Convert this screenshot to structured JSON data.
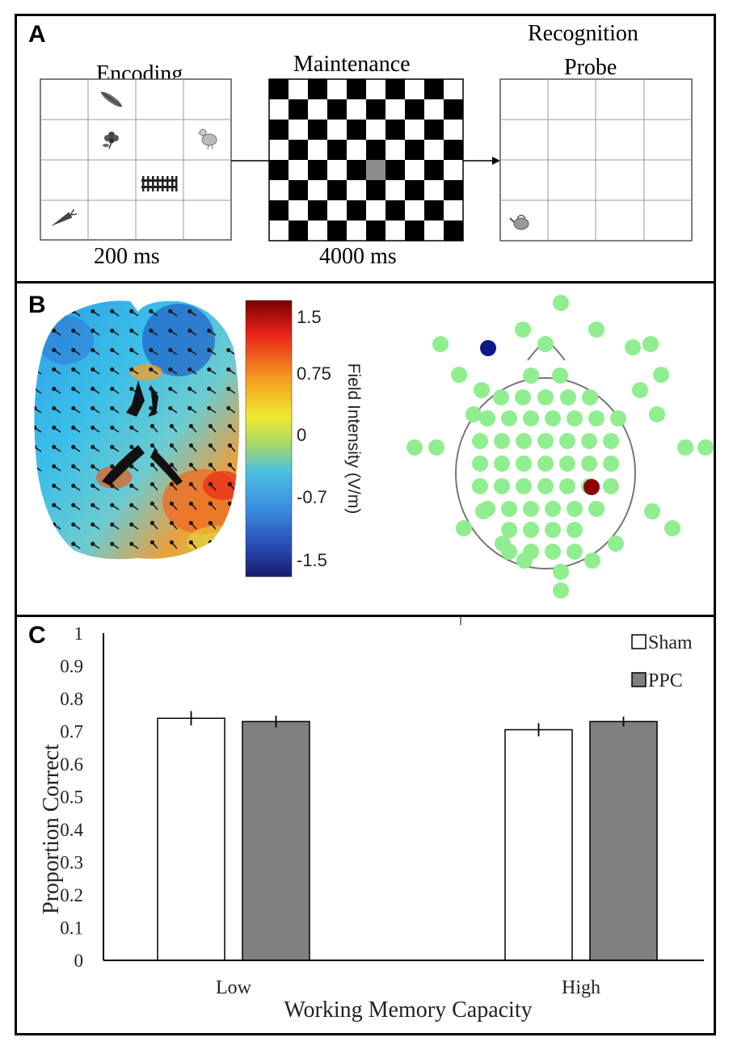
{
  "panel_a": {
    "letter": "A",
    "encoding": {
      "title": "Encoding",
      "duration": "200 ms"
    },
    "maintenance": {
      "title": "Maintenance",
      "duration": "4000 ms"
    },
    "probe": {
      "title_line1": "Recognition",
      "title_line2": "Probe"
    },
    "encoding_icons": [
      "feather-icon",
      "flower-icon",
      "chicken-icon",
      "fence-icon",
      "carrot-icon"
    ],
    "probe_icons": [
      "kettle-icon"
    ]
  },
  "panel_b": {
    "letter": "B",
    "colorbar": {
      "label": "Field Intensity (V/m)",
      "ticks": [
        "1.5",
        "0.75",
        "0",
        "-0.7",
        "-1.5"
      ]
    },
    "electrode_colors": {
      "normal": "#90ee90",
      "stim": "#8b0000",
      "return": "#0a1a8a"
    }
  },
  "panel_c": {
    "letter": "C",
    "chart_data": {
      "type": "bar",
      "categories": [
        "Low",
        "High"
      ],
      "series": [
        {
          "name": "Sham",
          "values": [
            0.74,
            0.705
          ],
          "errors": [
            0.022,
            0.02
          ],
          "color": "#ffffff"
        },
        {
          "name": "PPC",
          "values": [
            0.73,
            0.73
          ],
          "errors": [
            0.018,
            0.015
          ],
          "color": "#808080"
        }
      ],
      "ylabel": "Proportion Correct",
      "xlabel": "Working Memory Capacity",
      "ylim": [
        0,
        1
      ],
      "yticks": [
        "0",
        "0.1",
        "0.2",
        "0.3",
        "0.4",
        "0.5",
        "0.6",
        "0.7",
        "0.8",
        "0.9",
        "1"
      ],
      "legend": [
        "Sham",
        "PPC"
      ],
      "legend_position": "top-right"
    }
  }
}
